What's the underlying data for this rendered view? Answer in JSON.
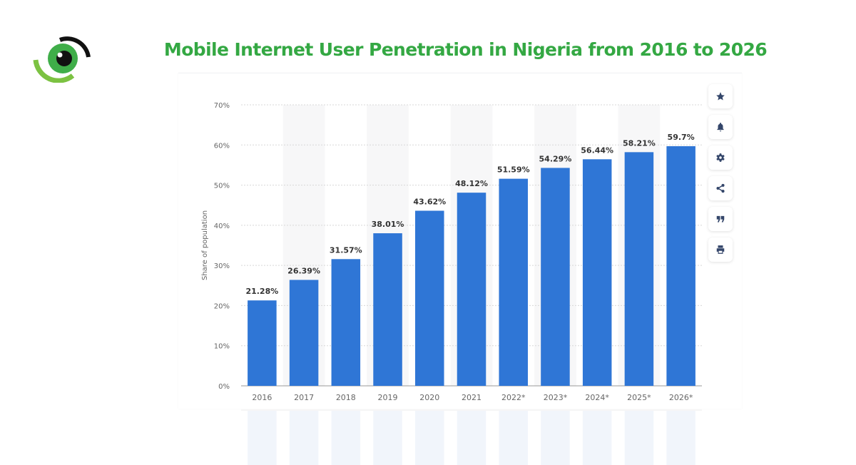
{
  "header": {
    "title": "Mobile Internet User Penetration in Nigeria from 2016 to 2026",
    "logo": "eye-logo-icon"
  },
  "colors": {
    "title": "#34a843",
    "bar": "#2f76d6",
    "band": "#f7f7f8",
    "grid": "#d8d8d8",
    "axis_text": "#666666",
    "label_text": "#333333",
    "icon": "#34466a"
  },
  "toolbar": {
    "items": [
      {
        "icon": "star-icon",
        "label": "Favorite"
      },
      {
        "icon": "bell-icon",
        "label": "Notifications"
      },
      {
        "icon": "gear-icon",
        "label": "Settings"
      },
      {
        "icon": "share-icon",
        "label": "Share"
      },
      {
        "icon": "quote-icon",
        "label": "Cite"
      },
      {
        "icon": "print-icon",
        "label": "Print"
      }
    ]
  },
  "chart_data": {
    "type": "bar",
    "title": "Mobile Internet User Penetration in Nigeria from 2016 to 2026",
    "xlabel": "",
    "ylabel": "Share of population",
    "categories": [
      "2016",
      "2017",
      "2018",
      "2019",
      "2020",
      "2021",
      "2022*",
      "2023*",
      "2024*",
      "2025*",
      "2026*"
    ],
    "values": [
      21.28,
      26.39,
      31.57,
      38.01,
      43.62,
      48.12,
      51.59,
      54.29,
      56.44,
      58.21,
      59.7
    ],
    "data_labels": [
      "21.28%",
      "26.39%",
      "31.57%",
      "38.01%",
      "43.62%",
      "48.12%",
      "51.59%",
      "54.29%",
      "56.44%",
      "58.21%",
      "59.7%"
    ],
    "ylim": [
      0,
      70
    ],
    "yticks": [
      0,
      10,
      20,
      30,
      40,
      50,
      60,
      70
    ],
    "ytick_labels": [
      "0%",
      "10%",
      "20%",
      "30%",
      "40%",
      "50%",
      "60%",
      "70%"
    ],
    "grid": true,
    "legend": "none"
  }
}
